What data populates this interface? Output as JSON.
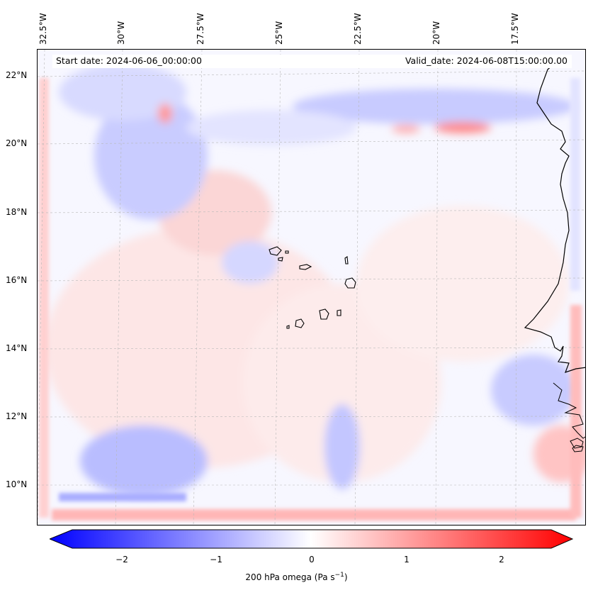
{
  "map": {
    "start_date": "Start date: 2024-06-06_00:00:00",
    "valid_date": "Valid_date: 2024-06-08T15:00:00.00",
    "lon_labels": [
      "32.5°W",
      "30°W",
      "27.5°W",
      "25°W",
      "22.5°W",
      "20°W",
      "17.5°W"
    ],
    "lat_labels": [
      "22°N",
      "20°N",
      "18°N",
      "16°N",
      "14°N",
      "12°N",
      "10°N"
    ],
    "colors": {
      "negative": "#0000ff",
      "zero": "#ffffff",
      "positive": "#ff0000",
      "coastline": "#000000"
    }
  },
  "colorbar": {
    "label": "200 hPa omega (Pa s",
    "label_sup": "−1",
    "label_end": ")",
    "ticks": [
      "−2",
      "−1",
      "0",
      "1",
      "2"
    ],
    "range": [
      -2.5,
      2.5
    ]
  }
}
